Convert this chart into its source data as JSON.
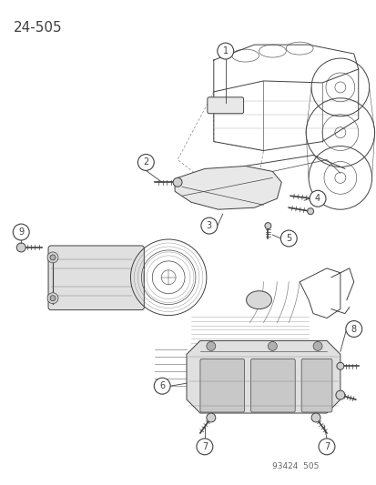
{
  "title": "24-505",
  "footer": "93424  505",
  "bg": "#ffffff",
  "lc": "#404040",
  "lc_light": "#808080",
  "figsize": [
    4.14,
    5.33
  ],
  "dpi": 100,
  "title_fontsize": 11,
  "footer_fontsize": 6.5,
  "callout_fontsize": 7,
  "callout_r": 0.018
}
